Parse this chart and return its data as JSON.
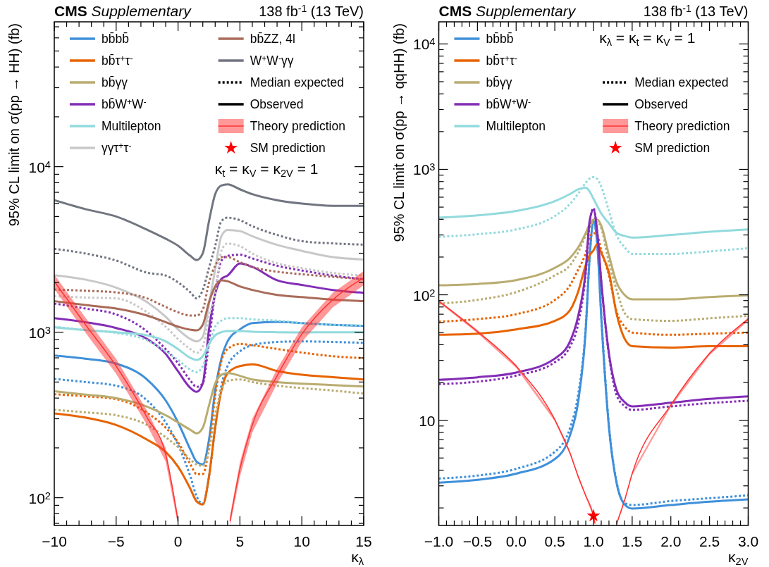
{
  "chart_data": [
    {
      "type": "line",
      "title": "CMS Supplementary",
      "subtitle": "138 fb$^{-1}$ (13 TeV)",
      "xlabel": "κ$_{λ}$",
      "ylabel": "95% CL limit on σ(pp → HH) (fb)",
      "annotations": [
        "κ$_{t}$ = κ$_{V}$ = κ$_{2V}$ = 1"
      ],
      "log": "y",
      "legend": "top",
      "x": [
        -10,
        -7.5,
        -5,
        -2.5,
        -1,
        0,
        1,
        1.5,
        2,
        2.5,
        3,
        3.5,
        4,
        5,
        6,
        8,
        10,
        12.5,
        15
      ],
      "xlim": [
        -10,
        15
      ],
      "ylim": [
        68,
        75000
      ],
      "xticks": [
        -10,
        {
          "value": -9,
          "label": null
        },
        {
          "value": -8,
          "label": null
        },
        {
          "value": -7,
          "label": null
        },
        {
          "value": -6,
          "label": null
        },
        -5,
        {
          "value": -4,
          "label": null
        },
        {
          "value": -3,
          "label": null
        },
        {
          "value": -2,
          "label": null
        },
        {
          "value": -1,
          "label": null
        },
        0,
        {
          "value": 1,
          "label": null
        },
        {
          "value": 2,
          "label": null
        },
        {
          "value": 3,
          "label": null
        },
        {
          "value": 4,
          "label": null
        },
        5,
        {
          "value": 6,
          "label": null
        },
        {
          "value": 7,
          "label": null
        },
        {
          "value": 8,
          "label": null
        },
        {
          "value": 9,
          "label": null
        },
        10,
        {
          "value": 11,
          "label": null
        },
        {
          "value": 12,
          "label": null
        },
        {
          "value": 13,
          "label": null
        },
        {
          "value": 14,
          "label": null
        },
        15
      ],
      "yticks": [
        {
          "value": 70,
          "label": null
        },
        {
          "value": 80,
          "label": null
        },
        {
          "value": 90,
          "label": null
        },
        {
          "value": 100,
          "label": "10$^{2}$"
        },
        {
          "value": 200,
          "label": null
        },
        {
          "value": 300,
          "label": null
        },
        {
          "value": 400,
          "label": null
        },
        {
          "value": 500,
          "label": null
        },
        {
          "value": 600,
          "label": null
        },
        {
          "value": 700,
          "label": null
        },
        {
          "value": 800,
          "label": null
        },
        {
          "value": 900,
          "label": null
        },
        {
          "value": 1000,
          "label": "10$^{3}$"
        },
        {
          "value": 2000,
          "label": null
        },
        {
          "value": 3000,
          "label": null
        },
        {
          "value": 4000,
          "label": null
        },
        {
          "value": 5000,
          "label": null
        },
        {
          "value": 6000,
          "label": null
        },
        {
          "value": 7000,
          "label": null
        },
        {
          "value": 8000,
          "label": null
        },
        {
          "value": 9000,
          "label": null
        },
        {
          "value": 10000,
          "label": "10$^{4}$"
        },
        {
          "value": 20000,
          "label": null
        },
        {
          "value": 30000,
          "label": null
        },
        {
          "value": 40000,
          "label": null
        },
        {
          "value": 50000,
          "label": null
        },
        {
          "value": 60000,
          "label": null
        },
        {
          "value": 70000,
          "label": null
        }
      ],
      "series": [
        {
          "name": "bb̄bb̄",
          "color": "#3f90da",
          "line_style": "solid",
          "values": [
            723,
            692,
            646,
            518,
            387,
            285,
            195,
            165,
            159,
            224,
            444,
            692,
            880,
            1040,
            1135,
            1155,
            1135,
            1108,
            1090
          ]
        },
        {
          "color": "#3f90da",
          "line_style": "dotted",
          "values": [
            522,
            500,
            475,
            387,
            285,
            209,
            134,
            102,
            92,
            134,
            265,
            475,
            624,
            766,
            834,
            873,
            880,
            873,
            863
          ]
        },
        {
          "name": "bb̄τ$^{+}$τ$^{-}$",
          "color": "#e76300",
          "line_style": "solid",
          "values": [
            323,
            305,
            275,
            224,
            189,
            154,
            113,
            95,
            91,
            134,
            265,
            444,
            564,
            624,
            640,
            583,
            553,
            535,
            518
          ]
        },
        {
          "color": "#e76300",
          "line_style": "dotted",
          "values": [
            422,
            410,
            394,
            326,
            265,
            216,
            159,
            139,
            139,
            202,
            414,
            668,
            792,
            849,
            834,
            792,
            753,
            716,
            697
          ]
        },
        {
          "name": "bb̄γγ",
          "color": "#b9ac70",
          "line_style": "solid",
          "values": [
            440,
            420,
            400,
            355,
            315,
            285,
            257,
            245,
            265,
            361,
            491,
            553,
            567,
            545,
            518,
            500,
            489,
            479,
            470
          ]
        },
        {
          "color": "#b9ac70",
          "line_style": "dotted",
          "values": [
            340,
            328,
            315,
            275,
            232,
            202,
            170,
            159,
            156,
            195,
            315,
            444,
            508,
            518,
            500,
            475,
            460,
            444,
            426
          ]
        },
        {
          "name": "bb̄W$^{+}$W$^{-}$",
          "color": "#832db6",
          "line_style": "solid",
          "values": [
            1215,
            1150,
            1060,
            910,
            740,
            580,
            460,
            436,
            491,
            1040,
            1700,
            2100,
            2200,
            2600,
            2480,
            2060,
            1930,
            1800,
            1730
          ]
        },
        {
          "color": "#832db6",
          "line_style": "dotted",
          "values": [
            1490,
            1390,
            1280,
            1010,
            790,
            650,
            510,
            467,
            490,
            880,
            1740,
            2700,
            2890,
            2940,
            2790,
            2520,
            2360,
            2200,
            2090
          ]
        },
        {
          "name": "Multilepton",
          "color": "#92dadd",
          "line_style": "solid",
          "values": [
            1070,
            1030,
            1000,
            957,
            880,
            790,
            700,
            680,
            716,
            850,
            957,
            1000,
            1015,
            1015,
            1007,
            1000,
            997,
            1000,
            1000
          ]
        },
        {
          "color": "#92dadd",
          "line_style": "dotted",
          "values": [
            1080,
            1030,
            990,
            893,
            766,
            680,
            593,
            573,
            624,
            820,
            1080,
            1175,
            1215,
            1215,
            1195,
            1175,
            1135,
            1108,
            1096
          ]
        },
        {
          "name": "γγτ$^{+}$τ$^{-}$",
          "color": "#c8c8c8",
          "line_style": "solid",
          "values": [
            2210,
            2080,
            1860,
            1520,
            1240,
            1040,
            910,
            880,
            940,
            1470,
            2400,
            3800,
            4150,
            4080,
            3800,
            3370,
            3100,
            2840,
            2750
          ]
        },
        {
          "color": "#c8c8c8",
          "line_style": "dotted",
          "values": [
            1650,
            1620,
            1600,
            1320,
            1080,
            910,
            790,
            750,
            820,
            1240,
            1700,
            3100,
            3430,
            3310,
            2990,
            2610,
            2440,
            2280,
            2200
          ]
        },
        {
          "name": "bb̄ZZ, 4l",
          "color": "#a96b59",
          "line_style": "solid",
          "values": [
            1540,
            1460,
            1390,
            1260,
            1150,
            1080,
            1035,
            1025,
            1110,
            1520,
            1890,
            2060,
            2030,
            1890,
            1800,
            1680,
            1630,
            1570,
            1540
          ]
        },
        {
          "color": "#a96b59",
          "line_style": "dotted",
          "values": [
            1810,
            1780,
            1740,
            1600,
            1420,
            1320,
            1260,
            1260,
            1370,
            2000,
            2520,
            2840,
            2840,
            2650,
            2480,
            2320,
            2240,
            2160,
            2090
          ]
        },
        {
          "name": "W$^{+}$W$^{-}$γγ",
          "color": "#717581",
          "line_style": "solid",
          "values": [
            6270,
            5540,
            5000,
            4160,
            3670,
            3330,
            2890,
            2730,
            3000,
            4680,
            6820,
            7690,
            7820,
            7300,
            6820,
            6270,
            5980,
            5800,
            5800
          ]
        },
        {
          "color": "#717581",
          "line_style": "dotted",
          "values": [
            3190,
            2990,
            2710,
            2290,
            2200,
            2000,
            1740,
            1600,
            1800,
            2450,
            3310,
            4680,
            4920,
            4750,
            4370,
            3870,
            3550,
            3440,
            3380
          ]
        },
        {
          "name": "Median expected",
          "color": "#000000",
          "line_style": "dotted",
          "values": [
            null,
            null,
            null,
            null,
            null,
            null,
            null,
            null,
            null,
            null,
            null,
            null,
            null,
            null,
            null,
            null,
            null,
            null,
            null
          ]
        },
        {
          "name": "Observed",
          "color": "#000000",
          "line_style": "solid",
          "values": [
            null,
            null,
            null,
            null,
            null,
            null,
            null,
            null,
            null,
            null,
            null,
            null,
            null,
            null,
            null,
            null,
            null,
            null,
            null
          ]
        },
        {
          "name": "Theory prediction",
          "color": "#ff3333",
          "line_style": "solid",
          "x": [
            -10,
            -7.5,
            -5,
            -2.5,
            -1,
            0,
            2,
            4.2,
            5,
            6,
            8,
            10,
            12.5,
            15
          ],
          "values": [
            2030,
            1115,
            624,
            305,
            183,
            72,
            null,
            72,
            149,
            275,
            545,
            973,
            1570,
            2130
          ],
          "lower": [
            1830,
            1000,
            560,
            275,
            165,
            68,
            null,
            68,
            134,
            248,
            490,
            875,
            1410,
            1920
          ],
          "upper": [
            2230,
            1230,
            690,
            335,
            200,
            78,
            null,
            78,
            164,
            300,
            600,
            1070,
            1730,
            2340
          ]
        },
        {
          "name": "SM prediction",
          "type": "scatter",
          "marker": "star",
          "color": "#ff0000",
          "values": [
            null,
            null,
            null,
            null,
            null,
            null,
            null,
            null,
            null,
            null,
            null,
            null,
            null,
            null,
            null,
            null,
            null,
            null,
            null
          ]
        }
      ]
    },
    {
      "type": "line",
      "title": "CMS Supplementary",
      "subtitle": "138 fb$^{-1}$ (13 TeV)",
      "xlabel": "κ$_{2V}$",
      "ylabel": "95% CL limit on σ(pp → qqHH) (fb)",
      "annotations": [
        "κ$_{λ}$ = κ$_{t}$ = κ$_{V}$ = 1"
      ],
      "log": "y",
      "legend": "top",
      "x": [
        -1,
        -0.5,
        0,
        0.5,
        0.7,
        0.8,
        0.9,
        0.95,
        1,
        1.05,
        1.1,
        1.2,
        1.3,
        1.4,
        1.5,
        2,
        2.5,
        3
      ],
      "xlim": [
        -1,
        3
      ],
      "ylim": [
        1.45,
        15000
      ],
      "xticks": [
        {
          "value": -1,
          "label": "−1.0"
        },
        {
          "value": -0.9,
          "label": null
        },
        {
          "value": -0.8,
          "label": null
        },
        {
          "value": -0.7,
          "label": null
        },
        {
          "value": -0.6,
          "label": null
        },
        {
          "value": -0.5,
          "label": "−0.5"
        },
        {
          "value": -0.4,
          "label": null
        },
        {
          "value": -0.3,
          "label": null
        },
        {
          "value": -0.2,
          "label": null
        },
        {
          "value": -0.1,
          "label": null
        },
        {
          "value": 0,
          "label": "0.0"
        },
        {
          "value": 0.1,
          "label": null
        },
        {
          "value": 0.2,
          "label": null
        },
        {
          "value": 0.3,
          "label": null
        },
        {
          "value": 0.4,
          "label": null
        },
        0.5,
        {
          "value": 0.6,
          "label": null
        },
        {
          "value": 0.7,
          "label": null
        },
        {
          "value": 0.8,
          "label": null
        },
        {
          "value": 0.9,
          "label": null
        },
        {
          "value": 1,
          "label": "1.0"
        },
        {
          "value": 1.1,
          "label": null
        },
        {
          "value": 1.2,
          "label": null
        },
        {
          "value": 1.3,
          "label": null
        },
        {
          "value": 1.4,
          "label": null
        },
        1.5,
        {
          "value": 1.6,
          "label": null
        },
        {
          "value": 1.7,
          "label": null
        },
        {
          "value": 1.8,
          "label": null
        },
        {
          "value": 1.9,
          "label": null
        },
        {
          "value": 2,
          "label": "2.0"
        },
        {
          "value": 2.1,
          "label": null
        },
        {
          "value": 2.2,
          "label": null
        },
        {
          "value": 2.3,
          "label": null
        },
        {
          "value": 2.4,
          "label": null
        },
        2.5,
        {
          "value": 2.6,
          "label": null
        },
        {
          "value": 2.7,
          "label": null
        },
        {
          "value": 2.8,
          "label": null
        },
        {
          "value": 2.9,
          "label": null
        },
        {
          "value": 3,
          "label": "3.0"
        }
      ],
      "yticks": [
        {
          "value": 2,
          "label": null
        },
        {
          "value": 3,
          "label": null
        },
        {
          "value": 4,
          "label": null
        },
        {
          "value": 5,
          "label": null
        },
        {
          "value": 6,
          "label": null
        },
        {
          "value": 7,
          "label": null
        },
        {
          "value": 8,
          "label": null
        },
        {
          "value": 9,
          "label": null
        },
        10,
        {
          "value": 20,
          "label": null
        },
        {
          "value": 30,
          "label": null
        },
        {
          "value": 40,
          "label": null
        },
        {
          "value": 50,
          "label": null
        },
        {
          "value": 60,
          "label": null
        },
        {
          "value": 70,
          "label": null
        },
        {
          "value": 80,
          "label": null
        },
        {
          "value": 90,
          "label": null
        },
        {
          "value": 100,
          "label": "10$^{2}$"
        },
        {
          "value": 200,
          "label": null
        },
        {
          "value": 300,
          "label": null
        },
        {
          "value": 400,
          "label": null
        },
        {
          "value": 500,
          "label": null
        },
        {
          "value": 600,
          "label": null
        },
        {
          "value": 700,
          "label": null
        },
        {
          "value": 800,
          "label": null
        },
        {
          "value": 900,
          "label": null
        },
        {
          "value": 1000,
          "label": "10$^{3}$"
        },
        {
          "value": 2000,
          "label": null
        },
        {
          "value": 3000,
          "label": null
        },
        {
          "value": 4000,
          "label": null
        },
        {
          "value": 5000,
          "label": null
        },
        {
          "value": 6000,
          "label": null
        },
        {
          "value": 7000,
          "label": null
        },
        {
          "value": 8000,
          "label": null
        },
        {
          "value": 9000,
          "label": null
        },
        {
          "value": 10000,
          "label": "10$^{4}$"
        }
      ],
      "series": [
        {
          "name": "bb̄bb̄",
          "color": "#3f90da",
          "line_style": "solid",
          "values": [
            3.18,
            3.35,
            3.75,
            4.9,
            7.7,
            13.8,
            53,
            198,
            389,
            248,
            67,
            8.8,
            3.13,
            2.14,
            1.98,
            2.11,
            2.24,
            2.34
          ]
        },
        {
          "color": "#3f90da",
          "line_style": "dotted",
          "values": [
            3.43,
            3.62,
            4.1,
            5.6,
            8.8,
            15.8,
            56,
            200,
            380,
            250,
            70,
            9,
            3.2,
            2.19,
            2.11,
            2.27,
            2.39,
            2.52
          ]
        },
        {
          "name": "bb̄τ$^{+}$τ$^{-}$",
          "color": "#e76300",
          "line_style": "solid",
          "values": [
            48,
            49,
            53,
            62,
            76,
            105,
            173,
            207,
            226,
            254,
            217,
            150,
            70,
            45,
            39,
            38,
            39,
            39
          ]
        },
        {
          "color": "#e76300",
          "line_style": "dotted",
          "values": [
            61,
            64,
            70,
            91,
            120,
            158,
            217,
            284,
            311,
            297,
            226,
            143,
            73,
            56,
            50,
            48,
            49,
            50
          ]
        },
        {
          "name": "bb̄γγ",
          "color": "#b9ac70",
          "line_style": "solid",
          "values": [
            119,
            122,
            131,
            164,
            198,
            237,
            311,
            364,
            398,
            398,
            356,
            207,
            125,
            100,
            92,
            92,
            96,
            99
          ]
        },
        {
          "color": "#b9ac70",
          "line_style": "dotted",
          "values": [
            85,
            91,
            105,
            143,
            173,
            217,
            297,
            340,
            380,
            380,
            340,
            180,
            109,
            72,
            64,
            62,
            65,
            68
          ]
        },
        {
          "name": "bb̄W$^{+}$W$^{-}$",
          "color": "#832db6",
          "line_style": "solid",
          "values": [
            21,
            22,
            24,
            31,
            43,
            67,
            158,
            389,
            477,
            311,
            130,
            34,
            17.3,
            14,
            12.9,
            13.8,
            14.8,
            15.5
          ]
        },
        {
          "color": "#832db6",
          "line_style": "dotted",
          "values": [
            19.4,
            20.3,
            22.7,
            29,
            39,
            58,
            150,
            370,
            490,
            300,
            125,
            33,
            15.8,
            13,
            12.1,
            12.9,
            13.7,
            14.3
          ]
        },
        {
          "name": "Multilepton",
          "color": "#92dadd",
          "line_style": "solid",
          "values": [
            412,
            430,
            466,
            557,
            638,
            692,
            714,
            667,
            583,
            509,
            445,
            371,
            311,
            295,
            286,
            300,
            318,
            332
          ]
        },
        {
          "color": "#92dadd",
          "line_style": "dotted",
          "values": [
            290,
            304,
            332,
            425,
            533,
            638,
            781,
            844,
            866,
            836,
            730,
            466,
            297,
            240,
            212,
            212,
            222,
            235
          ]
        },
        {
          "name": "Median expected",
          "color": "#000000",
          "line_style": "dotted",
          "values": [
            null,
            null,
            null,
            null,
            null,
            null,
            null,
            null,
            null,
            null,
            null,
            null,
            null,
            null,
            null,
            null,
            null,
            null
          ]
        },
        {
          "name": "Observed",
          "color": "#000000",
          "line_style": "solid",
          "values": [
            null,
            null,
            null,
            null,
            null,
            null,
            null,
            null,
            null,
            null,
            null,
            null,
            null,
            null,
            null,
            null,
            null,
            null
          ]
        },
        {
          "name": "Theory prediction",
          "color": "#ff3333",
          "line_style": "solid",
          "x": [
            -1,
            -0.5,
            0,
            0.5,
            0.7,
            0.8,
            0.9,
            1,
            1.02,
            1.15,
            1.3,
            1.4,
            1.5,
            2,
            2.5,
            3
          ],
          "values": [
            89,
            51,
            27,
            10.1,
            5.4,
            3.59,
            2.5,
            1.73,
            1.5,
            null,
            1.5,
            2.28,
            3.75,
            13.2,
            34,
            64
          ],
          "lower": [
            87,
            49.5,
            26.2,
            9.8,
            5.24,
            3.48,
            2.43,
            1.68,
            1.46,
            null,
            1.46,
            2.21,
            3.64,
            12.8,
            33,
            62
          ],
          "upper": [
            91,
            52.5,
            27.8,
            10.4,
            5.56,
            3.7,
            2.57,
            1.78,
            1.55,
            null,
            1.55,
            2.35,
            3.86,
            13.6,
            35,
            66
          ]
        },
        {
          "name": "SM prediction",
          "type": "scatter",
          "marker": "star",
          "color": "#ff0000",
          "x": [
            1
          ],
          "values": [
            1.73
          ]
        }
      ]
    }
  ]
}
